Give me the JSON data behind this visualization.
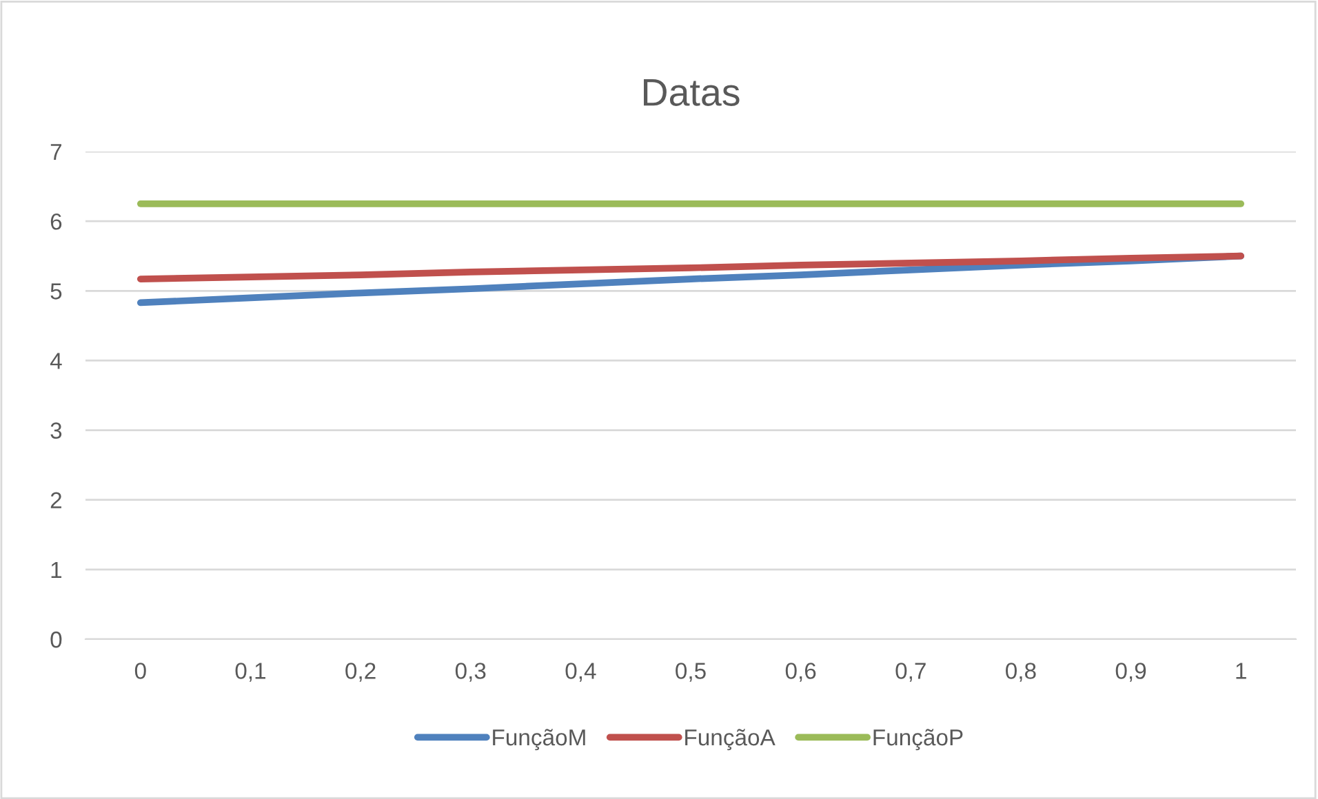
{
  "chart_data": {
    "type": "line",
    "title": "Datas",
    "categories": [
      "0",
      "0,1",
      "0,2",
      "0,3",
      "0,4",
      "0,5",
      "0,6",
      "0,7",
      "0,8",
      "0,9",
      "1"
    ],
    "series": [
      {
        "name": "FunçãoM",
        "color": "#4f81bd",
        "values": [
          4.83,
          4.9,
          4.97,
          5.03,
          5.1,
          5.17,
          5.23,
          5.3,
          5.37,
          5.43,
          5.5
        ]
      },
      {
        "name": "FunçãoA",
        "color": "#c0504d",
        "values": [
          5.17,
          5.2,
          5.23,
          5.27,
          5.3,
          5.33,
          5.37,
          5.4,
          5.43,
          5.47,
          5.5
        ]
      },
      {
        "name": "FunçãoP",
        "color": "#9bbb59",
        "values": [
          6.25,
          6.25,
          6.25,
          6.25,
          6.25,
          6.25,
          6.25,
          6.25,
          6.25,
          6.25,
          6.25
        ]
      }
    ],
    "ylim": [
      0,
      7
    ],
    "yticks": [
      0,
      1,
      2,
      3,
      4,
      5,
      6,
      7
    ],
    "grid": "y",
    "legend": "bottom",
    "marker": "none",
    "line_style": "solid"
  }
}
